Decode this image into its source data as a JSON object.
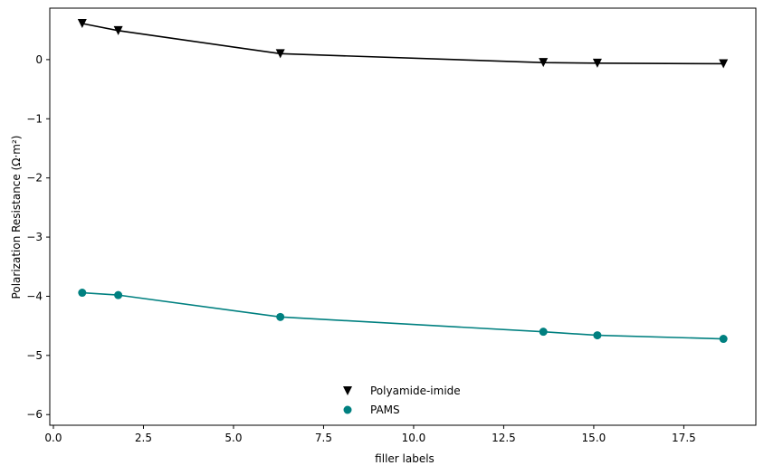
{
  "chart_data": {
    "type": "line",
    "title": "",
    "xlabel": "filler labels",
    "ylabel": "Polarization Resistance (Ω·m²)",
    "xlim": [
      -0.1,
      19.5
    ],
    "ylim": [
      -6.18,
      0.87
    ],
    "xticks": [
      0.0,
      2.5,
      5.0,
      7.5,
      10.0,
      12.5,
      15.0,
      17.5
    ],
    "xtick_labels": [
      "0.0",
      "2.5",
      "5.0",
      "7.5",
      "10.0",
      "12.5",
      "15.0",
      "17.5"
    ],
    "yticks": [
      0,
      -1,
      -2,
      -3,
      -4,
      -5,
      -6
    ],
    "ytick_labels": [
      "0",
      "−1",
      "−2",
      "−3",
      "−4",
      "−5",
      "−6"
    ],
    "grid": false,
    "legend_position": "bottom-center",
    "series": [
      {
        "name": "Polyamide-imide",
        "color": "#000000",
        "marker": "triangle-down",
        "x": [
          0.8,
          1.8,
          6.3,
          13.6,
          15.1,
          18.6
        ],
        "y": [
          0.61,
          0.49,
          0.1,
          -0.05,
          -0.06,
          -0.07
        ]
      },
      {
        "name": "PAMS",
        "color": "#008080",
        "marker": "circle",
        "x": [
          0.8,
          1.8,
          6.3,
          13.6,
          15.1,
          18.6
        ],
        "y": [
          -3.94,
          -3.98,
          -4.35,
          -4.6,
          -4.66,
          -4.72
        ]
      }
    ]
  }
}
